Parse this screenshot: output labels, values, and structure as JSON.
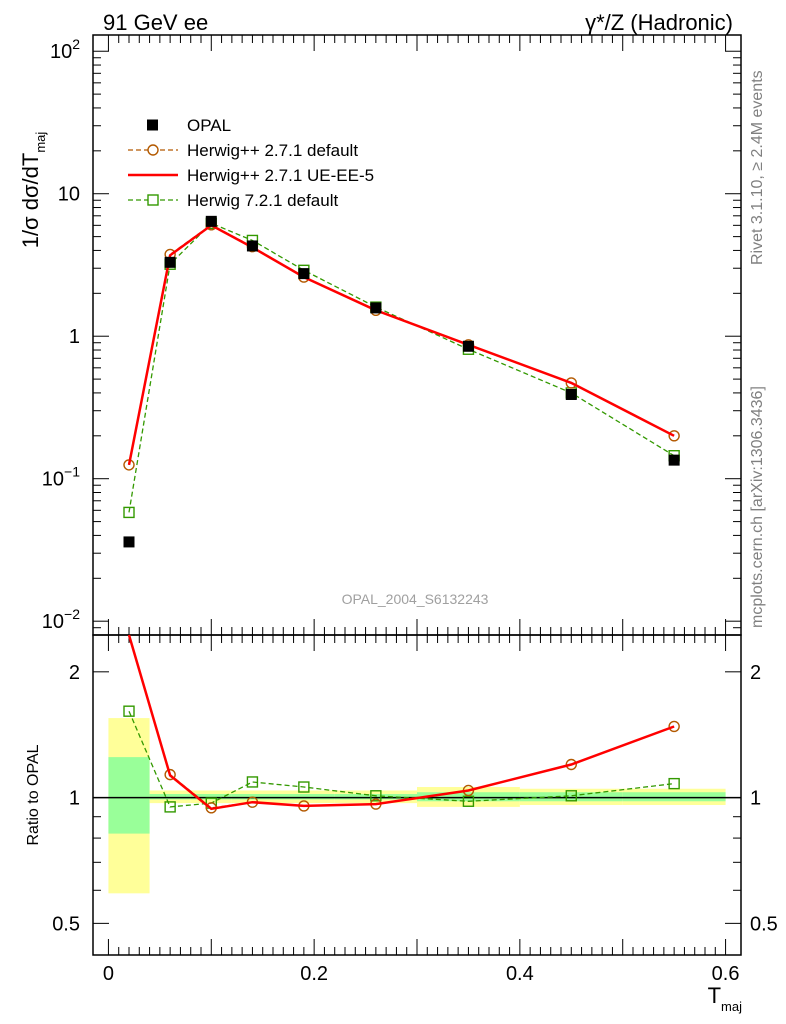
{
  "header": {
    "left": "91 GeV ee",
    "right": "γ*/Z (Hadronic)"
  },
  "side_text": {
    "top": "Rivet 3.1.10, ≥ 2.4M events",
    "bottom": "mcplots.cern.ch [arXiv:1306.3436]"
  },
  "watermark": "OPAL_2004_S6132243",
  "colors": {
    "data": "#000000",
    "herwigpp_default": "#b35900",
    "herwigpp_ueee5": "#ff0000",
    "herwig721": "#339900",
    "band_inner": "#99ff99",
    "band_outer": "#ffff99"
  },
  "chart_data": [
    {
      "type": "line",
      "panel": "main",
      "ylabel": {
        "main": "1/σ dσ/dT",
        "sub": "maj"
      },
      "yscale": "log",
      "ylim": [
        0.008,
        130
      ],
      "xlim": [
        -0.015,
        0.615
      ],
      "ytick_labels": [
        {
          "value": 0.01,
          "base": "10",
          "exp": "−2"
        },
        {
          "value": 0.1,
          "base": "10",
          "exp": "−1"
        },
        {
          "value": 1,
          "base": "1",
          "exp": ""
        },
        {
          "value": 10,
          "base": "10",
          "exp": ""
        },
        {
          "value": 100,
          "base": "10",
          "exp": "2"
        }
      ],
      "legend": {
        "placement": "top-left",
        "entries": [
          "OPAL",
          "Herwig++ 2.7.1 default",
          "Herwig++ 2.7.1 UE-EE-5",
          "Herwig 7.2.1 default"
        ]
      },
      "bins": [
        [
          0.0,
          0.04
        ],
        [
          0.04,
          0.08
        ],
        [
          0.08,
          0.12
        ],
        [
          0.12,
          0.16
        ],
        [
          0.16,
          0.22
        ],
        [
          0.22,
          0.3
        ],
        [
          0.3,
          0.4
        ],
        [
          0.4,
          0.5
        ],
        [
          0.5,
          0.6
        ]
      ],
      "x": [
        0.02,
        0.06,
        0.1,
        0.14,
        0.19,
        0.26,
        0.35,
        0.45,
        0.55
      ],
      "series": [
        {
          "name": "OPAL",
          "style": "data",
          "values": [
            0.036,
            3.3,
            6.4,
            4.3,
            2.75,
            1.58,
            0.85,
            0.39,
            0.135
          ]
        },
        {
          "name": "Herwig++ 2.7.1 default",
          "style": "circle",
          "values": [
            0.125,
            3.75,
            6.05,
            4.25,
            2.6,
            1.52,
            0.87,
            0.47,
            0.2
          ]
        },
        {
          "name": "Herwig++ 2.7.1 UE-EE-5",
          "style": "solid",
          "values": [
            0.125,
            3.7,
            6.0,
            4.2,
            2.6,
            1.52,
            0.87,
            0.47,
            0.2
          ]
        },
        {
          "name": "Herwig 7.2.1 default",
          "style": "square",
          "values": [
            0.058,
            3.2,
            6.2,
            4.7,
            2.9,
            1.6,
            0.81,
            0.4,
            0.145
          ]
        }
      ]
    },
    {
      "type": "line",
      "panel": "ratio",
      "ylabel": "Ratio to OPAL",
      "xlabel": {
        "main": "T",
        "sub": "maj"
      },
      "yscale": "log",
      "ylim": [
        0.42,
        2.45
      ],
      "xlim": [
        -0.015,
        0.615
      ],
      "ytick_labels": [
        "0.5",
        "1",
        "2"
      ],
      "xtick_labels": [
        "0",
        "0.2",
        "0.4",
        "0.6"
      ],
      "bands": [
        {
          "inner": [
            0.82,
            1.25
          ],
          "outer": [
            0.59,
            1.55
          ]
        },
        {
          "inner": [
            0.99,
            1.02
          ],
          "outer": [
            0.97,
            1.04
          ]
        },
        {
          "inner": [
            0.99,
            1.02
          ],
          "outer": [
            0.97,
            1.04
          ]
        },
        {
          "inner": [
            0.99,
            1.02
          ],
          "outer": [
            0.97,
            1.04
          ]
        },
        {
          "inner": [
            0.99,
            1.02
          ],
          "outer": [
            0.97,
            1.04
          ]
        },
        {
          "inner": [
            0.99,
            1.02
          ],
          "outer": [
            0.97,
            1.04
          ]
        },
        {
          "inner": [
            0.98,
            1.03
          ],
          "outer": [
            0.95,
            1.06
          ]
        },
        {
          "inner": [
            0.98,
            1.03
          ],
          "outer": [
            0.96,
            1.05
          ]
        },
        {
          "inner": [
            0.98,
            1.03
          ],
          "outer": [
            0.96,
            1.05
          ]
        }
      ],
      "series": [
        {
          "name": "Herwig++ 2.7.1 default",
          "style": "circle",
          "values": [
            3.47,
            1.135,
            0.945,
            0.975,
            0.955,
            0.965,
            1.04,
            1.2,
            1.48
          ]
        },
        {
          "name": "Herwig++ 2.7.1 UE-EE-5",
          "style": "solid",
          "values": [
            3.47,
            1.13,
            0.94,
            0.975,
            0.955,
            0.965,
            1.04,
            1.2,
            1.48
          ]
        },
        {
          "name": "Herwig 7.2.1 default",
          "style": "square",
          "values": [
            1.61,
            0.95,
            0.97,
            1.09,
            1.06,
            1.01,
            0.98,
            1.01,
            1.08
          ]
        }
      ]
    }
  ]
}
